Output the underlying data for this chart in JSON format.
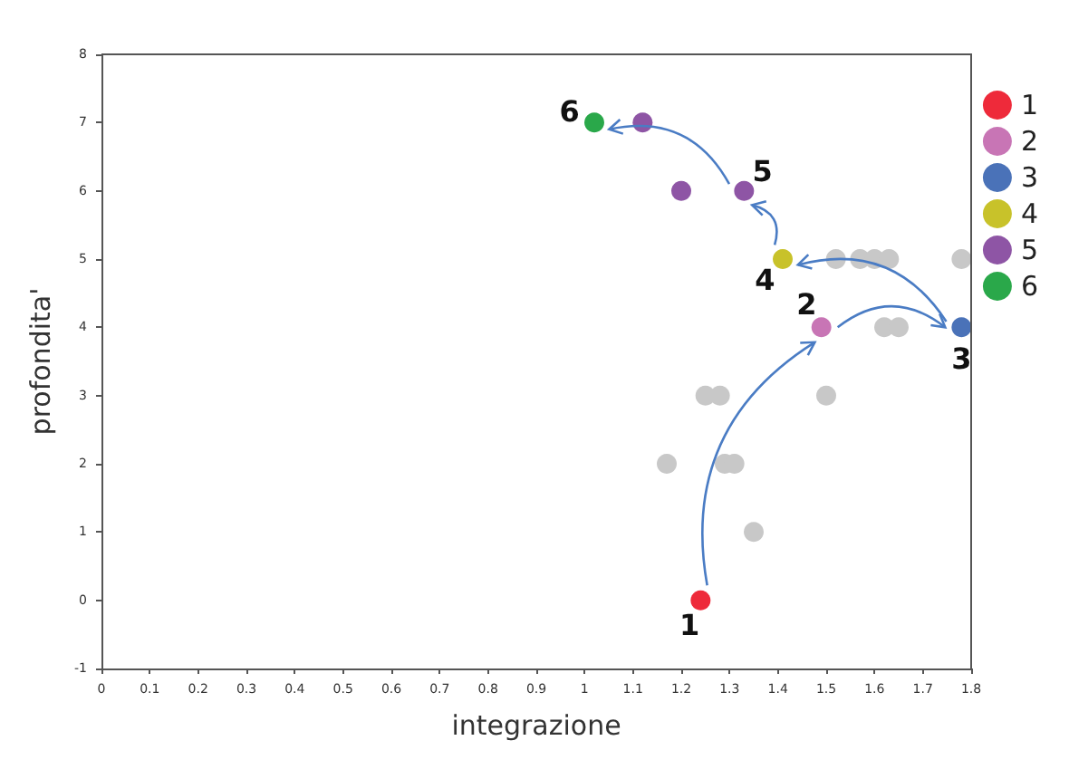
{
  "chart_data": {
    "type": "scatter",
    "xlabel": "integrazione",
    "ylabel": "profondita'",
    "xlim": [
      0,
      1.8
    ],
    "xticks": [
      0,
      0.1,
      0.2,
      0.3,
      0.4,
      0.5,
      0.6,
      0.7,
      0.8,
      0.9,
      1,
      1.1,
      1.2,
      1.3,
      1.4,
      1.5,
      1.6,
      1.7,
      1.8
    ],
    "ylim": [
      -1,
      8
    ],
    "yticks": [
      -1,
      0,
      1,
      2,
      3,
      4,
      5,
      6,
      7,
      8
    ],
    "grid": false,
    "legend": "right",
    "marker": "circle",
    "series": [
      {
        "color": "#c8c8c8",
        "x": [
          1.52,
          1.57,
          1.6,
          1.63,
          1.78,
          1.62,
          1.65,
          1.25,
          1.28,
          1.5,
          1.17,
          1.29,
          1.31,
          1.35
        ],
        "values": [
          5,
          5,
          5,
          5,
          5,
          4,
          4,
          3,
          3,
          3,
          2,
          2,
          2,
          1
        ]
      },
      {
        "name": "1",
        "color": "#ee2a3a",
        "x": [
          1.24
        ],
        "values": [
          0
        ]
      },
      {
        "name": "2",
        "color": "#c875b5",
        "x": [
          1.49
        ],
        "values": [
          4
        ]
      },
      {
        "name": "3",
        "color": "#4a72b8",
        "x": [
          1.78
        ],
        "values": [
          4
        ]
      },
      {
        "name": "4",
        "color": "#c8c22a",
        "x": [
          1.41
        ],
        "values": [
          5
        ]
      },
      {
        "name": "5",
        "color": "#8e55a5",
        "x": [
          1.12,
          1.2,
          1.33
        ],
        "values": [
          7,
          6,
          6
        ]
      },
      {
        "name": "6",
        "color": "#2aa84a",
        "x": [
          1.02
        ],
        "values": [
          7
        ]
      }
    ],
    "annotations": [
      {
        "text": "1",
        "x": 1.24,
        "y": 0
      },
      {
        "text": "2",
        "x": 1.49,
        "y": 4
      },
      {
        "text": "3",
        "x": 1.78,
        "y": 4
      },
      {
        "text": "4",
        "x": 1.41,
        "y": 5
      },
      {
        "text": "5",
        "x": 1.33,
        "y": 6
      },
      {
        "text": "6",
        "x": 1.02,
        "y": 7
      }
    ]
  }
}
